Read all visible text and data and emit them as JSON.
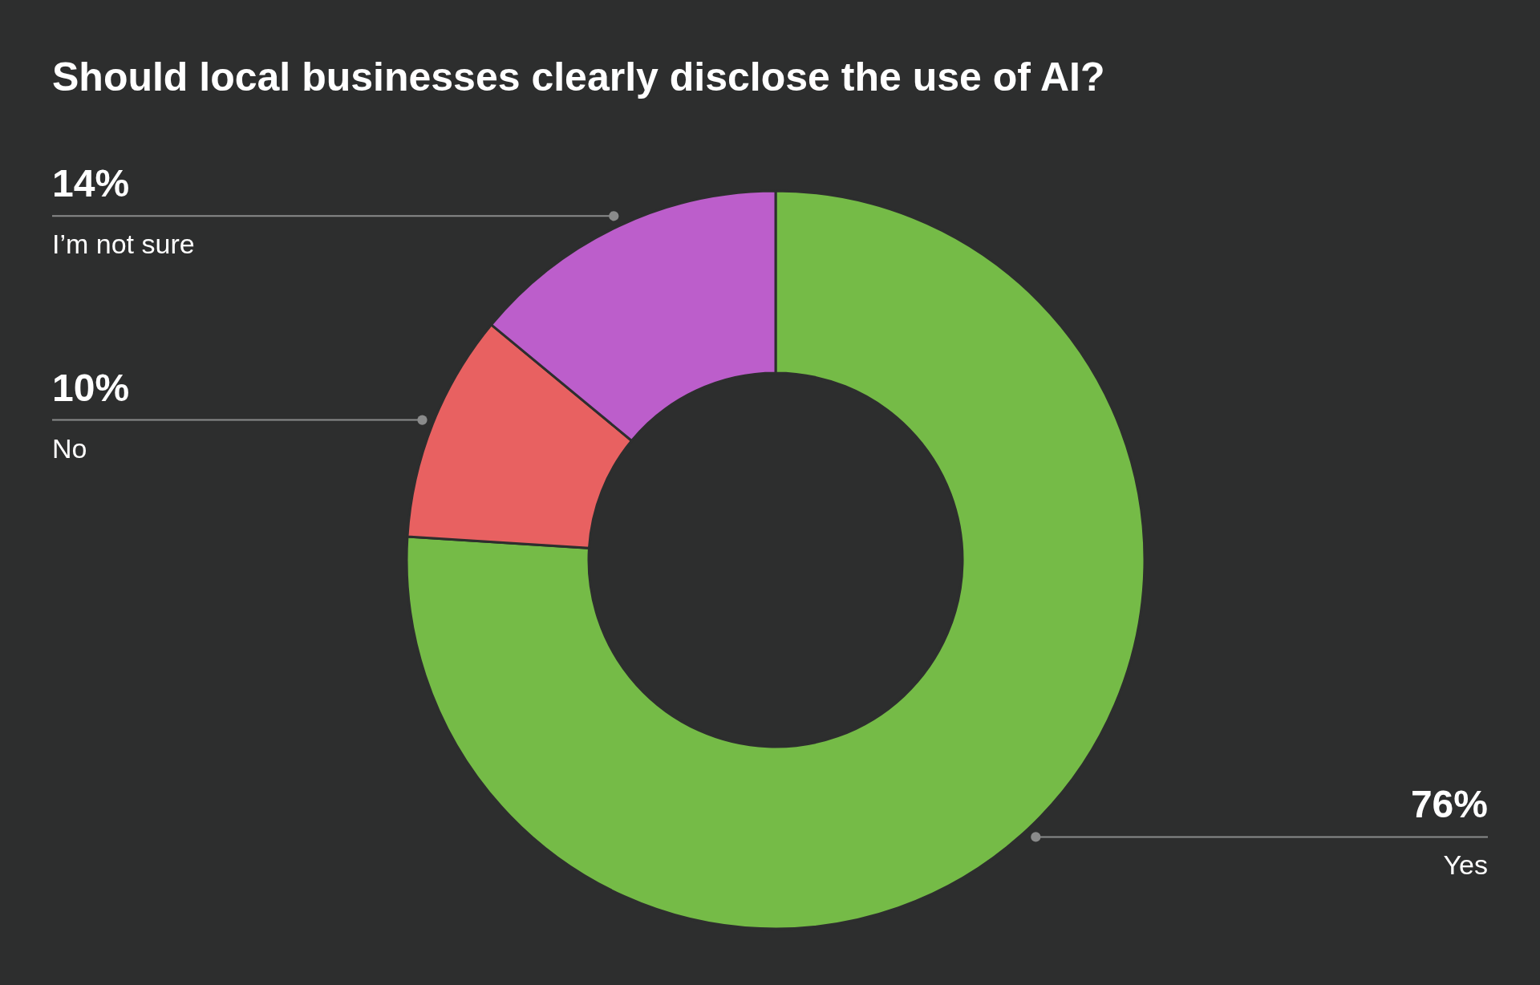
{
  "chart_data": {
    "type": "donut",
    "title": "Should local businesses clearly disclose the use of AI?",
    "categories": [
      "Yes",
      "No",
      "I’m not sure"
    ],
    "values": [
      76,
      10,
      14
    ],
    "colors": [
      "#75bb47",
      "#e86161",
      "#bc5ecb"
    ],
    "value_labels": [
      "76%",
      "10%",
      "14%"
    ]
  }
}
